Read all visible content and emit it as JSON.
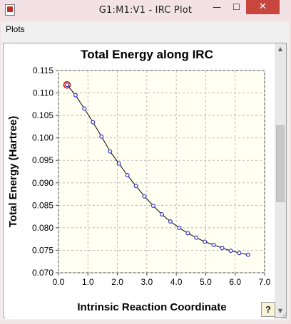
{
  "window": {
    "title": "G1:M1:V1 - IRC Plot",
    "minimize_glyph": "—",
    "maximize_glyph": "☐",
    "close_glyph": "✕"
  },
  "menu": {
    "items": [
      "Plots"
    ]
  },
  "help_button": {
    "label": "?"
  },
  "icons": {
    "app": "gaussview-plot-icon",
    "help": "help-icon",
    "highlight_marker": "current-point-marker"
  },
  "chart_data": {
    "type": "line",
    "title": "Total Energy along IRC",
    "xlabel": "Intrinsic Reaction Coordinate",
    "ylabel": "Total Energy (Hartree)",
    "xlim": [
      0.0,
      7.0
    ],
    "ylim": [
      0.07,
      0.115
    ],
    "x_ticks": [
      "0.0",
      "1.0",
      "2.0",
      "3.0",
      "4.0",
      "5.0",
      "6.0",
      "7.0"
    ],
    "y_ticks": [
      "0.070",
      "0.075",
      "0.080",
      "0.085",
      "0.090",
      "0.095",
      "0.100",
      "0.105",
      "0.110",
      "0.115"
    ],
    "grid": true,
    "highlight_index": 0,
    "colors": {
      "line": "#000000",
      "marker": "#3333cc",
      "highlight": "#cc0000",
      "plot_bg": "#fffff2"
    },
    "series": [
      {
        "x": [
          0.29,
          0.58,
          0.88,
          1.17,
          1.46,
          1.75,
          2.05,
          2.34,
          2.63,
          2.92,
          3.22,
          3.51,
          3.8,
          4.1,
          4.39,
          4.68,
          4.97,
          5.27,
          5.56,
          5.85,
          6.14,
          6.44
        ],
        "y": [
          0.1118,
          0.1095,
          0.1065,
          0.1035,
          0.1003,
          0.097,
          0.0943,
          0.0917,
          0.0893,
          0.087,
          0.0849,
          0.083,
          0.0814,
          0.08,
          0.0788,
          0.0778,
          0.0769,
          0.0762,
          0.0755,
          0.0749,
          0.0744,
          0.074
        ]
      }
    ]
  }
}
